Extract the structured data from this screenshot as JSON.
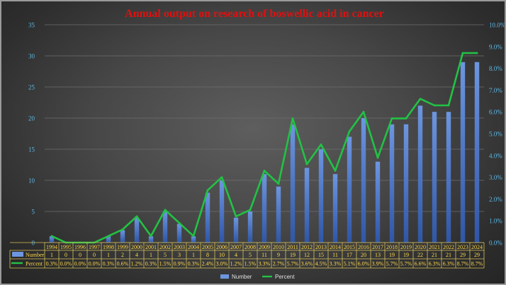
{
  "chart_data": {
    "type": "bar",
    "title": "Annual output on research of boswellic acid in cancer",
    "categories": [
      "1994",
      "1995",
      "1996",
      "1997",
      "1998",
      "1999",
      "2000",
      "2001",
      "2002",
      "2003",
      "2004",
      "2005",
      "2006",
      "2007",
      "2008",
      "2009",
      "2010",
      "2011",
      "2012",
      "2013",
      "2014",
      "2015",
      "2016",
      "2017",
      "2018",
      "2019",
      "2020",
      "2021",
      "2022",
      "2023",
      "2024"
    ],
    "series": [
      {
        "name": "Number",
        "type": "bar",
        "axis": "left",
        "values": [
          1,
          0,
          0,
          0,
          1,
          2,
          4,
          1,
          5,
          3,
          1,
          8,
          10,
          4,
          5,
          11,
          9,
          19,
          12,
          15,
          11,
          17,
          20,
          13,
          19,
          19,
          22,
          21,
          21,
          29,
          29
        ],
        "color": "#4472c4"
      },
      {
        "name": "Percent",
        "type": "line",
        "axis": "right",
        "values": [
          0.3,
          0.0,
          0.0,
          0.0,
          0.3,
          0.6,
          1.2,
          0.3,
          1.5,
          0.9,
          0.3,
          2.4,
          3.0,
          1.2,
          1.5,
          3.3,
          2.7,
          5.7,
          3.6,
          4.5,
          3.3,
          5.1,
          6.0,
          3.9,
          5.7,
          5.7,
          6.6,
          6.3,
          6.3,
          8.7,
          8.7
        ],
        "labels": [
          "0.3%",
          "0.0%",
          "0.0%",
          "0.0%",
          "0.3%",
          "0.6%",
          "1.2%",
          "0.3%",
          "1.5%",
          "0.9%",
          "0.3%",
          "2.4%",
          "3.0%",
          "1.2%",
          "1.5%",
          "3.3%",
          "2.7%",
          "5.7%",
          "3.6%",
          "4.5%",
          "3.3%",
          "5.1%",
          "6.0%",
          "3.9%",
          "5.7%",
          "5.7%",
          "6.6%",
          "6.3%",
          "6.3%",
          "8.7%",
          "8.7%"
        ],
        "color": "#22c244"
      }
    ],
    "y_left": {
      "ylim": [
        0,
        35
      ],
      "ticks": [
        "0",
        "5",
        "10",
        "15",
        "20",
        "25",
        "30",
        "35"
      ]
    },
    "y_right": {
      "ylim": [
        0,
        10
      ],
      "ticks": [
        "0.0%",
        "1.0%",
        "2.0%",
        "3.0%",
        "4.0%",
        "5.0%",
        "6.0%",
        "7.0%",
        "8.0%",
        "9.0%",
        "10.0%"
      ]
    },
    "grid": true,
    "legend": "bottom",
    "data_table": true
  },
  "colors": {
    "title": "#e01010",
    "axis_text": "#5cb8e6",
    "table_text": "#ffd84a",
    "table_border": "#d8c25a",
    "grid": "#6e6e6e",
    "bar_top": "#6d96e0",
    "bar_bottom": "#2f56a6",
    "line": "#22c244",
    "legend_text": "#e0e0e0"
  }
}
